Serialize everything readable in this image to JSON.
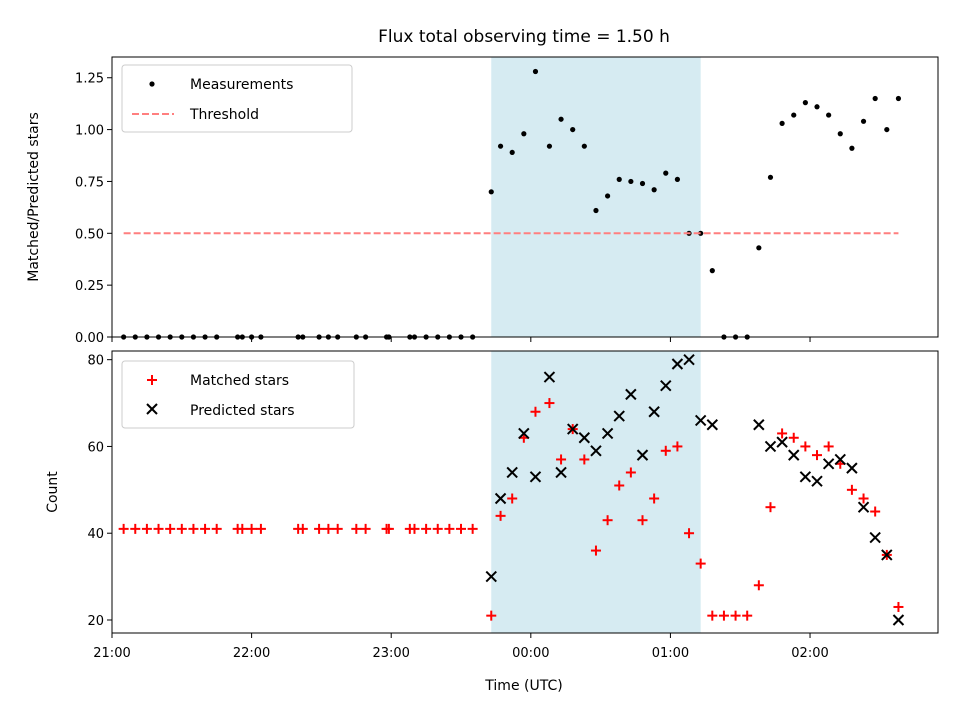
{
  "chart_data": {
    "type": "scatter",
    "title": "Flux total observing time = 1.50 h",
    "xlabel": "Time (UTC)",
    "x_unit": "hours UTC",
    "xlim": [
      "21:00",
      "02:55"
    ],
    "xticks": [
      "21:00",
      "22:00",
      "23:00",
      "00:00",
      "01:00",
      "02:00"
    ],
    "shaded_interval": {
      "start": "23:43",
      "end": "01:13",
      "color": "#add8e6"
    },
    "panels": [
      {
        "name": "ratio",
        "ylabel": "Matched/Predicted stars",
        "ylim": [
          0,
          1.35
        ],
        "yticks": [
          "0.00",
          "0.25",
          "0.50",
          "0.75",
          "1.00",
          "1.25"
        ],
        "legend": {
          "placement": "top-left",
          "entries": [
            "Measurements",
            "Threshold"
          ]
        },
        "series": [
          {
            "name": "Measurements",
            "color": "#000000",
            "marker": "dot",
            "points": [
              [
                "21:05",
                0
              ],
              [
                "21:10",
                0
              ],
              [
                "21:15",
                0
              ],
              [
                "21:20",
                0
              ],
              [
                "21:25",
                0
              ],
              [
                "21:30",
                0
              ],
              [
                "21:35",
                0
              ],
              [
                "21:40",
                0
              ],
              [
                "21:45",
                0
              ],
              [
                "21:54",
                0
              ],
              [
                "21:56",
                0
              ],
              [
                "22:00",
                0
              ],
              [
                "22:04",
                0
              ],
              [
                "22:20",
                0
              ],
              [
                "22:22",
                0
              ],
              [
                "22:29",
                0
              ],
              [
                "22:33",
                0
              ],
              [
                "22:37",
                0
              ],
              [
                "22:45",
                0
              ],
              [
                "22:49",
                0
              ],
              [
                "22:58",
                0
              ],
              [
                "22:59",
                0
              ],
              [
                "23:08",
                0
              ],
              [
                "23:10",
                0
              ],
              [
                "23:15",
                0
              ],
              [
                "23:20",
                0
              ],
              [
                "23:25",
                0
              ],
              [
                "23:30",
                0
              ],
              [
                "23:35",
                0
              ],
              [
                "23:43",
                0.7
              ],
              [
                "23:47",
                0.92
              ],
              [
                "23:52",
                0.89
              ],
              [
                "23:57",
                0.98
              ],
              [
                "00:02",
                1.28
              ],
              [
                "00:08",
                0.92
              ],
              [
                "00:13",
                1.05
              ],
              [
                "00:18",
                1.0
              ],
              [
                "00:23",
                0.92
              ],
              [
                "00:28",
                0.61
              ],
              [
                "00:33",
                0.68
              ],
              [
                "00:38",
                0.76
              ],
              [
                "00:43",
                0.75
              ],
              [
                "00:48",
                0.74
              ],
              [
                "00:53",
                0.71
              ],
              [
                "00:58",
                0.79
              ],
              [
                "01:03",
                0.76
              ],
              [
                "01:08",
                0.5
              ],
              [
                "01:13",
                0.5
              ],
              [
                "01:18",
                0.32
              ],
              [
                "01:23",
                0
              ],
              [
                "01:28",
                0
              ],
              [
                "01:33",
                0
              ],
              [
                "01:38",
                0.43
              ],
              [
                "01:43",
                0.77
              ],
              [
                "01:48",
                1.03
              ],
              [
                "01:53",
                1.07
              ],
              [
                "01:58",
                1.13
              ],
              [
                "02:03",
                1.11
              ],
              [
                "02:08",
                1.07
              ],
              [
                "02:13",
                0.98
              ],
              [
                "02:18",
                0.91
              ],
              [
                "02:23",
                1.04
              ],
              [
                "02:28",
                1.15
              ],
              [
                "02:33",
                1.0
              ],
              [
                "02:38",
                1.15
              ]
            ]
          },
          {
            "name": "Threshold",
            "color": "#ff7f7f",
            "style": "dashed",
            "points": [
              [
                "21:05",
                0.5
              ],
              [
                "02:38",
                0.5
              ]
            ]
          }
        ]
      },
      {
        "name": "counts",
        "ylabel": "Count",
        "ylim": [
          17,
          82
        ],
        "yticks": [
          "20",
          "40",
          "60",
          "80"
        ],
        "legend": {
          "placement": "top-left",
          "entries": [
            "Matched stars",
            "Predicted stars"
          ]
        },
        "series": [
          {
            "name": "Matched stars",
            "color": "#ff0000",
            "marker": "plus",
            "points": [
              [
                "21:05",
                41
              ],
              [
                "21:10",
                41
              ],
              [
                "21:15",
                41
              ],
              [
                "21:20",
                41
              ],
              [
                "21:25",
                41
              ],
              [
                "21:30",
                41
              ],
              [
                "21:35",
                41
              ],
              [
                "21:40",
                41
              ],
              [
                "21:45",
                41
              ],
              [
                "21:54",
                41
              ],
              [
                "21:56",
                41
              ],
              [
                "22:00",
                41
              ],
              [
                "22:04",
                41
              ],
              [
                "22:20",
                41
              ],
              [
                "22:22",
                41
              ],
              [
                "22:29",
                41
              ],
              [
                "22:33",
                41
              ],
              [
                "22:37",
                41
              ],
              [
                "22:45",
                41
              ],
              [
                "22:49",
                41
              ],
              [
                "22:58",
                41
              ],
              [
                "22:59",
                41
              ],
              [
                "23:08",
                41
              ],
              [
                "23:10",
                41
              ],
              [
                "23:15",
                41
              ],
              [
                "23:20",
                41
              ],
              [
                "23:25",
                41
              ],
              [
                "23:30",
                41
              ],
              [
                "23:35",
                41
              ],
              [
                "23:43",
                21
              ],
              [
                "23:47",
                44
              ],
              [
                "23:52",
                48
              ],
              [
                "23:57",
                62
              ],
              [
                "00:02",
                68
              ],
              [
                "00:08",
                70
              ],
              [
                "00:13",
                57
              ],
              [
                "00:18",
                64
              ],
              [
                "00:23",
                57
              ],
              [
                "00:28",
                36
              ],
              [
                "00:33",
                43
              ],
              [
                "00:38",
                51
              ],
              [
                "00:43",
                54
              ],
              [
                "00:48",
                43
              ],
              [
                "00:53",
                48
              ],
              [
                "00:58",
                59
              ],
              [
                "01:03",
                60
              ],
              [
                "01:08",
                40
              ],
              [
                "01:13",
                33
              ],
              [
                "01:18",
                21
              ],
              [
                "01:23",
                21
              ],
              [
                "01:28",
                21
              ],
              [
                "01:33",
                21
              ],
              [
                "01:38",
                28
              ],
              [
                "01:43",
                46
              ],
              [
                "01:48",
                63
              ],
              [
                "01:53",
                62
              ],
              [
                "01:58",
                60
              ],
              [
                "02:03",
                58
              ],
              [
                "02:08",
                60
              ],
              [
                "02:13",
                56
              ],
              [
                "02:18",
                50
              ],
              [
                "02:23",
                48
              ],
              [
                "02:28",
                45
              ],
              [
                "02:33",
                35
              ],
              [
                "02:38",
                23
              ]
            ]
          },
          {
            "name": "Predicted stars",
            "color": "#000000",
            "marker": "x",
            "points": [
              [
                "23:43",
                30
              ],
              [
                "23:47",
                48
              ],
              [
                "23:52",
                54
              ],
              [
                "23:57",
                63
              ],
              [
                "00:02",
                53
              ],
              [
                "00:08",
                76
              ],
              [
                "00:13",
                54
              ],
              [
                "00:18",
                64
              ],
              [
                "00:23",
                62
              ],
              [
                "00:28",
                59
              ],
              [
                "00:33",
                63
              ],
              [
                "00:38",
                67
              ],
              [
                "00:43",
                72
              ],
              [
                "00:48",
                58
              ],
              [
                "00:53",
                68
              ],
              [
                "00:58",
                74
              ],
              [
                "01:03",
                79
              ],
              [
                "01:08",
                80
              ],
              [
                "01:13",
                66
              ],
              [
                "01:18",
                65
              ],
              [
                "01:38",
                65
              ],
              [
                "01:43",
                60
              ],
              [
                "01:48",
                61
              ],
              [
                "01:53",
                58
              ],
              [
                "01:58",
                53
              ],
              [
                "02:03",
                52
              ],
              [
                "02:08",
                56
              ],
              [
                "02:13",
                57
              ],
              [
                "02:18",
                55
              ],
              [
                "02:23",
                46
              ],
              [
                "02:28",
                39
              ],
              [
                "02:33",
                35
              ],
              [
                "02:38",
                20
              ]
            ]
          }
        ]
      }
    ]
  }
}
